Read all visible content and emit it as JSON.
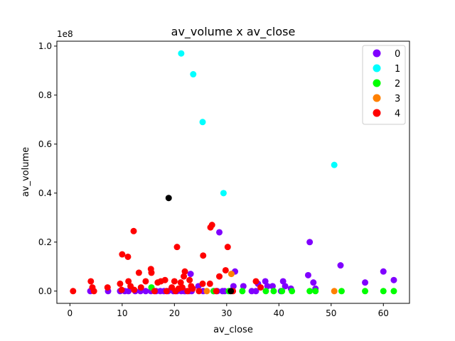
{
  "chart_data": {
    "type": "scatter",
    "title": "av_volume x av_close",
    "xlabel": "av_close",
    "ylabel": "av_volume",
    "y_offset_text": "1e8",
    "xlim": [
      -2.5,
      65
    ],
    "ylim": [
      -0.05,
      1.02
    ],
    "xticks": [
      0,
      10,
      20,
      30,
      40,
      50,
      60
    ],
    "yticks": [
      0.0,
      0.2,
      0.4,
      0.6,
      0.8,
      1.0
    ],
    "ytick_labels": [
      "0.0",
      "0.2",
      "0.4",
      "0.6",
      "0.8",
      "1.0"
    ],
    "grid": false,
    "legend_position": "top-right",
    "series": [
      {
        "name": "0",
        "color": "#8000ff",
        "points": [
          [
            3.9,
            0.0
          ],
          [
            7.3,
            0.0
          ],
          [
            9.6,
            0.0
          ],
          [
            10.5,
            0.0
          ],
          [
            11.2,
            0.0
          ],
          [
            12.5,
            0.0
          ],
          [
            13.5,
            0.0
          ],
          [
            14.5,
            0.0
          ],
          [
            15.5,
            0.0
          ],
          [
            16.5,
            0.0
          ],
          [
            17.3,
            0.0
          ],
          [
            18.0,
            0.0
          ],
          [
            18.8,
            0.0
          ],
          [
            19.8,
            0.0
          ],
          [
            20.5,
            0.0
          ],
          [
            21.3,
            0.0
          ],
          [
            22.1,
            0.0
          ],
          [
            22.8,
            0.0
          ],
          [
            23.3,
            0.0
          ],
          [
            23.1,
            0.07
          ],
          [
            21.9,
            0.0
          ],
          [
            24.6,
            0.02
          ],
          [
            25.5,
            0.0
          ],
          [
            27.5,
            0.0
          ],
          [
            28.2,
            0.0
          ],
          [
            29.6,
            0.0
          ],
          [
            28.6,
            0.24
          ],
          [
            29.2,
            0.0
          ],
          [
            31.3,
            0.02
          ],
          [
            31.6,
            0.08
          ],
          [
            33.2,
            0.02
          ],
          [
            34.8,
            0.0
          ],
          [
            35.6,
            0.0
          ],
          [
            36.0,
            0.03
          ],
          [
            37.4,
            0.04
          ],
          [
            37.8,
            0.02
          ],
          [
            38.8,
            0.02
          ],
          [
            40.4,
            0.0
          ],
          [
            40.8,
            0.04
          ],
          [
            41.2,
            0.02
          ],
          [
            42.3,
            0.01
          ],
          [
            45.6,
            0.065
          ],
          [
            45.9,
            0.2
          ],
          [
            46.6,
            0.035
          ],
          [
            47.0,
            0.01
          ],
          [
            51.8,
            0.105
          ],
          [
            56.5,
            0.035
          ],
          [
            60.0,
            0.08
          ],
          [
            62.0,
            0.045
          ]
        ]
      },
      {
        "name": "1",
        "color": "#00ffff",
        "points": [
          [
            21.3,
            0.97
          ],
          [
            23.6,
            0.885
          ],
          [
            25.4,
            0.69
          ],
          [
            29.4,
            0.4
          ],
          [
            50.6,
            0.515
          ]
        ]
      },
      {
        "name": "2",
        "color": "#00ff00",
        "points": [
          [
            15.6,
            0.015
          ],
          [
            27.5,
            0.0
          ],
          [
            30.4,
            0.0
          ],
          [
            33.0,
            0.0
          ],
          [
            37.5,
            0.0
          ],
          [
            39.0,
            0.0
          ],
          [
            40.6,
            0.0
          ],
          [
            42.5,
            0.0
          ],
          [
            45.9,
            0.0
          ],
          [
            47.0,
            0.0
          ],
          [
            52.0,
            0.0
          ],
          [
            56.5,
            0.0
          ],
          [
            60.0,
            0.0
          ],
          [
            62.0,
            0.0
          ]
        ]
      },
      {
        "name": "3",
        "color": "#ff8000",
        "points": [
          [
            26.2,
            0.0
          ],
          [
            30.9,
            0.07
          ],
          [
            50.6,
            0.0
          ]
        ]
      },
      {
        "name": "4",
        "color": "#ff0000",
        "points": [
          [
            0.6,
            0.0
          ],
          [
            4.0,
            0.04
          ],
          [
            4.3,
            0.015
          ],
          [
            4.6,
            0.0
          ],
          [
            7.2,
            0.015
          ],
          [
            9.6,
            0.03
          ],
          [
            9.9,
            0.005
          ],
          [
            10.0,
            0.15
          ],
          [
            11.1,
            0.14
          ],
          [
            11.2,
            0.04
          ],
          [
            11.6,
            0.02
          ],
          [
            12.2,
            0.245
          ],
          [
            12.3,
            0.005
          ],
          [
            13.2,
            0.075
          ],
          [
            13.6,
            0.015
          ],
          [
            14.5,
            0.04
          ],
          [
            15.5,
            0.09
          ],
          [
            15.6,
            0.075
          ],
          [
            16.2,
            0.0
          ],
          [
            16.8,
            0.035
          ],
          [
            17.4,
            0.04
          ],
          [
            18.2,
            0.045
          ],
          [
            18.5,
            0.0
          ],
          [
            19.5,
            0.015
          ],
          [
            20.0,
            0.04
          ],
          [
            20.2,
            0.0
          ],
          [
            20.5,
            0.18
          ],
          [
            20.8,
            0.01
          ],
          [
            21.2,
            0.035
          ],
          [
            21.5,
            0.015
          ],
          [
            21.8,
            0.06
          ],
          [
            22.0,
            0.08
          ],
          [
            22.5,
            0.0
          ],
          [
            22.9,
            0.045
          ],
          [
            23.2,
            0.02
          ],
          [
            23.5,
            0.01
          ],
          [
            24.7,
            0.0
          ],
          [
            25.4,
            0.03
          ],
          [
            25.5,
            0.145
          ],
          [
            26.8,
            0.03
          ],
          [
            26.9,
            0.26
          ],
          [
            27.2,
            0.27
          ],
          [
            28.0,
            0.0
          ],
          [
            28.6,
            0.06
          ],
          [
            29.8,
            0.085
          ],
          [
            30.2,
            0.18
          ],
          [
            31.2,
            0.0
          ],
          [
            35.6,
            0.04
          ],
          [
            36.5,
            0.015
          ]
        ]
      },
      {
        "name": "",
        "color": "#000000",
        "points": [
          [
            18.9,
            0.38
          ],
          [
            30.8,
            0.0
          ]
        ]
      }
    ]
  }
}
